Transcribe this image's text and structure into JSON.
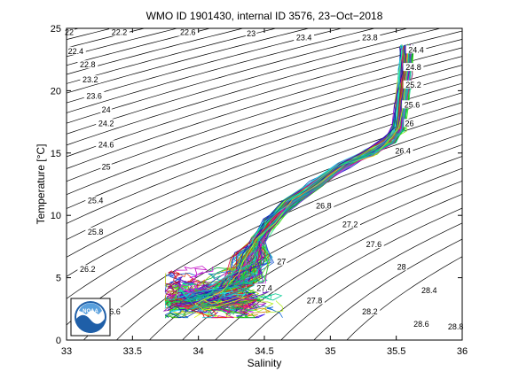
{
  "chart_data": {
    "type": "line",
    "title": "WMO ID 1901430, internal ID 3576, 23−Oct−2018",
    "xlabel": "Salinity",
    "ylabel": "Temperature [°C]",
    "xlim": [
      33,
      36
    ],
    "ylim": [
      0,
      25
    ],
    "x_ticks": [
      "33",
      "33.5",
      "34",
      "34.5",
      "35",
      "35.5",
      "36"
    ],
    "y_ticks": [
      "0",
      "5",
      "10",
      "15",
      "20",
      "25"
    ],
    "grid": false,
    "legend": "none",
    "logo": "NOAA",
    "sigma_isopycnals": [
      {
        "label": "22",
        "s": 33.02,
        "t": 24.6
      },
      {
        "label": "22.2",
        "s": 33.4,
        "t": 24.6
      },
      {
        "label": "22.4",
        "s": 33.07,
        "t": 23.1
      },
      {
        "label": "22.6",
        "s": 33.92,
        "t": 24.6
      },
      {
        "label": "22.8",
        "s": 33.16,
        "t": 22.0
      },
      {
        "label": "23",
        "s": 34.4,
        "t": 24.5
      },
      {
        "label": "23.2",
        "s": 33.18,
        "t": 20.8
      },
      {
        "label": "23.4",
        "s": 34.8,
        "t": 24.2
      },
      {
        "label": "23.6",
        "s": 33.21,
        "t": 19.5
      },
      {
        "label": "23.8",
        "s": 35.3,
        "t": 24.2
      },
      {
        "label": "24",
        "s": 33.3,
        "t": 18.4
      },
      {
        "label": "24.2",
        "s": 33.3,
        "t": 17.3
      },
      {
        "label": "24.4",
        "s": 35.65,
        "t": 23.2
      },
      {
        "label": "24.6",
        "s": 33.3,
        "t": 15.6
      },
      {
        "label": "24.8",
        "s": 35.63,
        "t": 21.8
      },
      {
        "label": "25",
        "s": 33.3,
        "t": 13.8
      },
      {
        "label": "25.2",
        "s": 35.63,
        "t": 20.4
      },
      {
        "label": "25.4",
        "s": 33.22,
        "t": 11.1
      },
      {
        "label": "25.6",
        "s": 35.62,
        "t": 18.8
      },
      {
        "label": "25.8",
        "s": 33.22,
        "t": 8.6
      },
      {
        "label": "26",
        "s": 35.6,
        "t": 17.3
      },
      {
        "label": "26.2",
        "s": 33.16,
        "t": 5.6
      },
      {
        "label": "26.4",
        "s": 35.55,
        "t": 15.1
      },
      {
        "label": "26.6",
        "s": 33.35,
        "t": 2.2
      },
      {
        "label": "26.8",
        "s": 34.95,
        "t": 10.7
      },
      {
        "label": "27",
        "s": 34.63,
        "t": 6.2
      },
      {
        "label": "27.2",
        "s": 35.15,
        "t": 9.2
      },
      {
        "label": "27.4",
        "s": 34.5,
        "t": 4.1
      },
      {
        "label": "27.6",
        "s": 35.33,
        "t": 7.6
      },
      {
        "label": "27.8",
        "s": 34.88,
        "t": 3.1
      },
      {
        "label": "28",
        "s": 35.54,
        "t": 5.8
      },
      {
        "label": "28.2",
        "s": 35.3,
        "t": 2.2
      },
      {
        "label": "28.4",
        "s": 35.75,
        "t": 3.9
      },
      {
        "label": "28.6",
        "s": 35.69,
        "t": 1.2
      },
      {
        "label": "28.8",
        "s": 35.95,
        "t": 1.0
      }
    ],
    "profile_envelope": [
      {
        "s": 35.58,
        "t": 23.5
      },
      {
        "s": 35.57,
        "t": 21.5
      },
      {
        "s": 35.54,
        "t": 19.0
      },
      {
        "s": 35.52,
        "t": 17.0
      },
      {
        "s": 35.45,
        "t": 16.0
      },
      {
        "s": 35.3,
        "t": 15.0
      },
      {
        "s": 35.1,
        "t": 14.0
      },
      {
        "s": 34.9,
        "t": 12.5
      },
      {
        "s": 34.7,
        "t": 11.0
      },
      {
        "s": 34.55,
        "t": 9.5
      },
      {
        "s": 34.45,
        "t": 8.0
      },
      {
        "s": 34.4,
        "t": 6.5
      },
      {
        "s": 34.35,
        "t": 5.0
      },
      {
        "s": 34.2,
        "t": 4.0
      },
      {
        "s": 34.0,
        "t": 3.3
      },
      {
        "s": 33.9,
        "t": 2.8
      }
    ],
    "series_count": 120
  }
}
